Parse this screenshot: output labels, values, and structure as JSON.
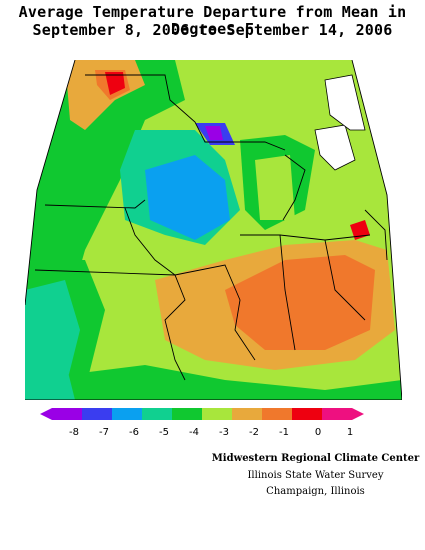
{
  "title": {
    "line1": "Average Temperature Departure from Mean in Degrees F",
    "line2": "September 8, 2006 to September 14, 2006"
  },
  "legend": {
    "ticks": [
      "-8",
      "-7",
      "-6",
      "-5",
      "-4",
      "-3",
      "-2",
      "-1",
      "0",
      "1"
    ],
    "colors": [
      "#9a00e6",
      "#3a3df0",
      "#0aa0f0",
      "#10d090",
      "#10c830",
      "#a8e63c",
      "#e8a93c",
      "#f0782c",
      "#ee0010",
      "#ee1080"
    ]
  },
  "credits": {
    "line1": "Midwestern Regional Climate Center",
    "line2": "Illinois State Water Survey",
    "line3": "Champaign, Illinois"
  }
}
